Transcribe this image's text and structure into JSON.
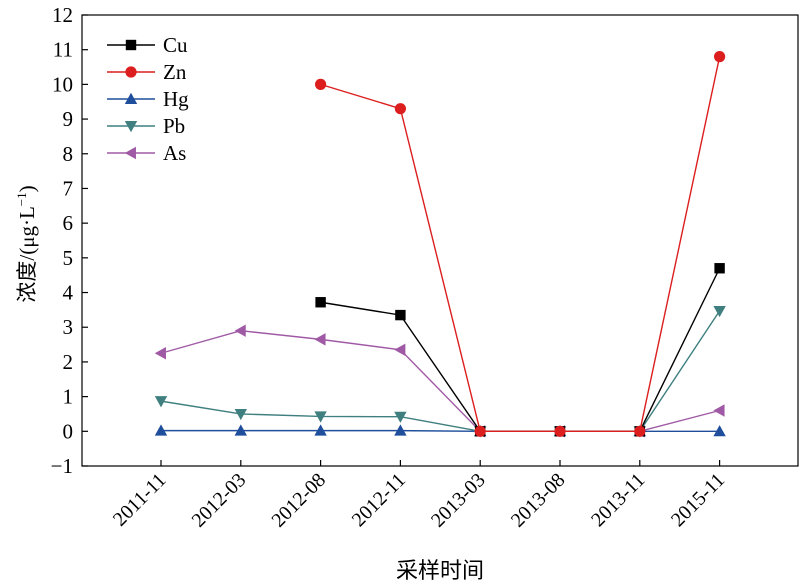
{
  "chart_data": {
    "type": "line",
    "title": "",
    "xlabel": "采样时间",
    "ylabel": "浓度/(μg·L",
    "ylabel_sup": "−1",
    "ylabel_end": ")",
    "ylim": [
      -1,
      12
    ],
    "yticks": [
      -1,
      0,
      1,
      2,
      3,
      4,
      5,
      6,
      7,
      8,
      9,
      10,
      11,
      12
    ],
    "ytick_labels": [
      "−1",
      "0",
      "1",
      "2",
      "3",
      "4",
      "5",
      "6",
      "7",
      "8",
      "9",
      "10",
      "11",
      "12"
    ],
    "categories": [
      "2011-11",
      "2012-03",
      "2012-08",
      "2012-11",
      "2013-03",
      "2013-08",
      "2013-11",
      "2015-11"
    ],
    "grid": false,
    "legend_position": "top-left",
    "series": [
      {
        "name": "Cu",
        "color": "#000000",
        "marker": "square",
        "values": [
          null,
          null,
          3.72,
          3.35,
          0.0,
          0.0,
          0.0,
          4.7
        ]
      },
      {
        "name": "Zn",
        "color": "#dc1e1e",
        "marker": "circle",
        "values": [
          null,
          null,
          10.0,
          9.3,
          0.0,
          0.0,
          0.0,
          10.8
        ]
      },
      {
        "name": "Hg",
        "color": "#1f4e9c",
        "marker": "triangle-up",
        "values": [
          0.02,
          0.02,
          0.02,
          0.02,
          0.0,
          0.0,
          0.0,
          0.0
        ]
      },
      {
        "name": "Pb",
        "color": "#3f7f7f",
        "marker": "triangle-down",
        "values": [
          0.87,
          0.5,
          0.43,
          0.42,
          0.0,
          0.0,
          0.0,
          3.47
        ]
      },
      {
        "name": "As",
        "color": "#a05aa5",
        "marker": "triangle-left",
        "values": [
          2.25,
          2.9,
          2.65,
          2.35,
          0.0,
          0.0,
          0.0,
          0.6
        ]
      }
    ]
  }
}
